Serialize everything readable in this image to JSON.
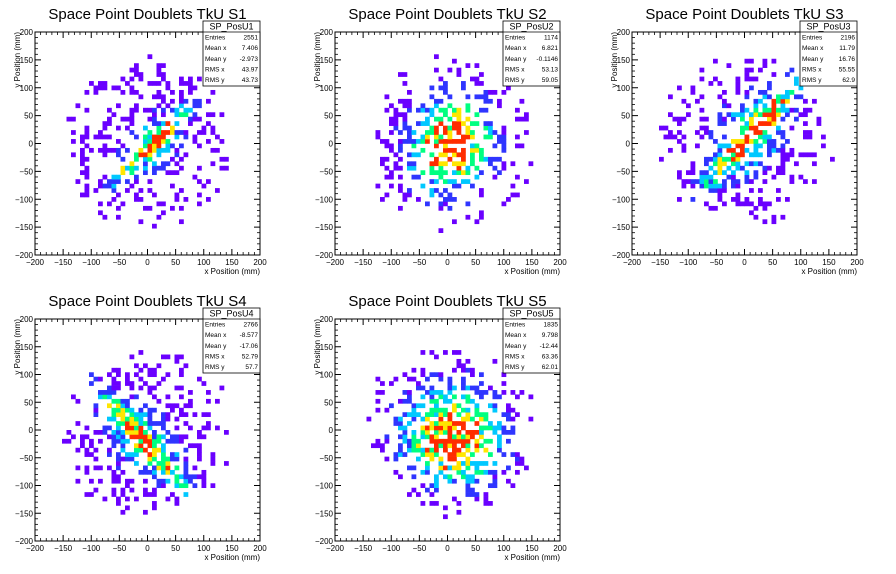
{
  "chart_data": [
    {
      "type": "heatmap",
      "title": "Space Point Doublets TkU S1",
      "xlabel": "x Position (mm)",
      "ylabel": "y Position (mm)",
      "xlim": [
        -200,
        200
      ],
      "ylim": [
        -200,
        200
      ],
      "xticks": [
        "−200",
        "−150",
        "−100",
        "−50",
        "0",
        "50",
        "100",
        "150",
        "200"
      ],
      "yticks": [
        "−200",
        "−150",
        "−100",
        "−50",
        "0",
        "50",
        "100",
        "150",
        "200"
      ],
      "colormap": [
        "#6a00ff",
        "#2f35ff",
        "#00c8ff",
        "#00ff80",
        "#ffe600",
        "#ff2d00"
      ],
      "stats": {
        "name": "SP_PosU1",
        "rows": [
          {
            "label": "Entries",
            "value": "2551"
          },
          {
            "label": "Mean x",
            "value": "7.406"
          },
          {
            "label": "Mean y",
            "value": "-2.973"
          },
          {
            "label": "RMS x",
            "value": "43.97"
          },
          {
            "label": "RMS y",
            "value": "43.73"
          }
        ]
      },
      "density": {
        "mean": [
          7,
          -3
        ],
        "rms": [
          44,
          44
        ],
        "correlation": 0.55,
        "pattern": "diagonal-band",
        "occupancy": 0.72,
        "max_level": 6
      }
    },
    {
      "type": "heatmap",
      "title": "Space Point Doublets TkU S2",
      "xlabel": "x Position (mm)",
      "ylabel": "y Position (mm)",
      "xlim": [
        -200,
        200
      ],
      "ylim": [
        -200,
        200
      ],
      "xticks": [
        "−200",
        "−150",
        "−100",
        "−50",
        "0",
        "50",
        "100",
        "150",
        "200"
      ],
      "yticks": [
        "−200",
        "−150",
        "−100",
        "−50",
        "0",
        "50",
        "100",
        "150",
        "200"
      ],
      "colormap": [
        "#6a00ff",
        "#2f35ff",
        "#00c8ff",
        "#00ff80",
        "#ffe600",
        "#ff2d00"
      ],
      "stats": {
        "name": "SP_PosU2",
        "rows": [
          {
            "label": "Entries",
            "value": "1174"
          },
          {
            "label": "Mean x",
            "value": "6.821"
          },
          {
            "label": "Mean y",
            "value": "-0.1146"
          },
          {
            "label": "RMS x",
            "value": "53.13"
          },
          {
            "label": "RMS y",
            "value": "59.05"
          }
        ]
      },
      "density": {
        "mean": [
          7,
          0
        ],
        "rms": [
          53,
          59
        ],
        "correlation": 0.1,
        "pattern": "central-blob",
        "occupancy": 0.55,
        "max_level": 6
      }
    },
    {
      "type": "heatmap",
      "title": "Space Point Doublets TkU S3",
      "xlabel": "x Position (mm)",
      "ylabel": "y Position (mm)",
      "xlim": [
        -200,
        200
      ],
      "ylim": [
        -200,
        200
      ],
      "xticks": [
        "−200",
        "−150",
        "−100",
        "−50",
        "0",
        "50",
        "100",
        "150",
        "200"
      ],
      "yticks": [
        "−200",
        "−150",
        "−100",
        "−50",
        "0",
        "50",
        "100",
        "150",
        "200"
      ],
      "colormap": [
        "#6a00ff",
        "#2f35ff",
        "#00c8ff",
        "#00ff80",
        "#ffe600",
        "#ff2d00"
      ],
      "stats": {
        "name": "SP_PosU3",
        "rows": [
          {
            "label": "Entries",
            "value": "2196"
          },
          {
            "label": "Mean x",
            "value": "11.79"
          },
          {
            "label": "Mean y",
            "value": "16.76"
          },
          {
            "label": "RMS x",
            "value": "55.55"
          },
          {
            "label": "RMS y",
            "value": "62.9"
          }
        ]
      },
      "density": {
        "mean": [
          12,
          17
        ],
        "rms": [
          56,
          63
        ],
        "correlation": 0.5,
        "pattern": "diagonal-band",
        "occupancy": 0.68,
        "max_level": 6
      }
    },
    {
      "type": "heatmap",
      "title": "Space Point Doublets TkU S4",
      "xlabel": "x Position (mm)",
      "ylabel": "y Position (mm)",
      "xlim": [
        -200,
        200
      ],
      "ylim": [
        -200,
        200
      ],
      "xticks": [
        "−200",
        "−150",
        "−100",
        "−50",
        "0",
        "50",
        "100",
        "150",
        "200"
      ],
      "yticks": [
        "−200",
        "−150",
        "−100",
        "−50",
        "0",
        "50",
        "100",
        "150",
        "200"
      ],
      "colormap": [
        "#6a00ff",
        "#2f35ff",
        "#00c8ff",
        "#00ff80",
        "#ffe600",
        "#ff2d00"
      ],
      "stats": {
        "name": "SP_PosU4",
        "rows": [
          {
            "label": "Entries",
            "value": "2766"
          },
          {
            "label": "Mean x",
            "value": "-8.577"
          },
          {
            "label": "Mean y",
            "value": "-17.06"
          },
          {
            "label": "RMS x",
            "value": "52.79"
          },
          {
            "label": "RMS y",
            "value": "57.7"
          }
        ]
      },
      "density": {
        "mean": [
          -9,
          -17
        ],
        "rms": [
          53,
          58
        ],
        "correlation": -0.5,
        "pattern": "diagonal-band",
        "occupancy": 0.75,
        "max_level": 6
      }
    },
    {
      "type": "heatmap",
      "title": "Space Point Doublets TkU S5",
      "xlabel": "x Position (mm)",
      "ylabel": "y Position (mm)",
      "xlim": [
        -200,
        200
      ],
      "ylim": [
        -200,
        200
      ],
      "xticks": [
        "−200",
        "−150",
        "−100",
        "−50",
        "0",
        "50",
        "100",
        "150",
        "200"
      ],
      "yticks": [
        "−200",
        "−150",
        "−100",
        "−50",
        "0",
        "50",
        "100",
        "150",
        "200"
      ],
      "colormap": [
        "#6a00ff",
        "#2f35ff",
        "#00c8ff",
        "#00ff80",
        "#ffe600",
        "#ff2d00"
      ],
      "stats": {
        "name": "SP_PosU5",
        "rows": [
          {
            "label": "Entries",
            "value": "1835"
          },
          {
            "label": "Mean x",
            "value": "9.798"
          },
          {
            "label": "Mean y",
            "value": "-12.44"
          },
          {
            "label": "RMS x",
            "value": "63.36"
          },
          {
            "label": "RMS y",
            "value": "62.01"
          }
        ]
      },
      "density": {
        "mean": [
          10,
          -12
        ],
        "rms": [
          63,
          62
        ],
        "correlation": 0.0,
        "pattern": "central-blob",
        "occupancy": 0.6,
        "max_level": 6
      }
    }
  ]
}
